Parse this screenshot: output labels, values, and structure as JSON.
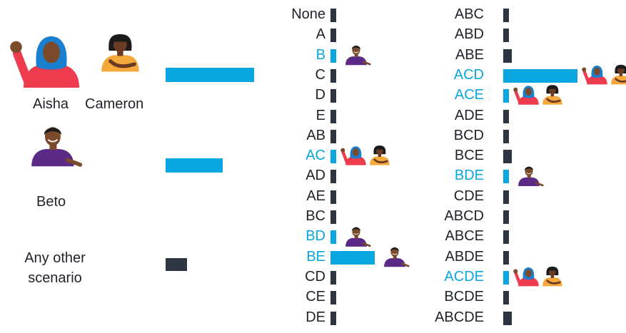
{
  "colors": {
    "highlight": "#0aa6e0",
    "neutral": "#2d3641",
    "text": "#1f2329",
    "skin_dark": "#6a3b22",
    "skin_medium": "#7a4a2a",
    "hijab": "#1b7fd0",
    "aisha_shirt": "#ee3b4d",
    "cameron_shirt": "#f6a93b",
    "beto_shirt": "#5a2a86",
    "hair": "#1b1b1b"
  },
  "people": {
    "aisha": "Aisha",
    "cameron": "Cameron",
    "beto": "Beto"
  },
  "chart_data": [
    {
      "type": "bar",
      "orientation": "horizontal",
      "categories": [
        "Aisha Cameron",
        "Beto",
        "Any other scenario"
      ],
      "values": [
        0.53,
        0.34,
        0.13
      ],
      "highlighted": [
        true,
        true,
        false
      ]
    },
    {
      "type": "bar",
      "orientation": "horizontal",
      "categories": [
        "None",
        "A",
        "B",
        "C",
        "D",
        "E",
        "AB",
        "AC",
        "AD",
        "AE",
        "BC",
        "BD",
        "BE",
        "CD",
        "CE",
        "DE"
      ],
      "values": [
        0.01,
        0.01,
        0.01,
        0.01,
        0.01,
        0.01,
        0.01,
        0.01,
        0.01,
        0.01,
        0.01,
        0.01,
        0.08,
        0.01,
        0.01,
        0.01
      ],
      "highlighted": [
        "B",
        "AC",
        "BD",
        "BE"
      ],
      "scenario_people": {
        "B": [
          "beto"
        ],
        "AC": [
          "aisha",
          "cameron"
        ],
        "BD": [
          "beto"
        ],
        "BE": [
          "beto"
        ]
      }
    },
    {
      "type": "bar",
      "orientation": "horizontal",
      "categories": [
        "ABC",
        "ABD",
        "ABE",
        "ACD",
        "ACE",
        "ADE",
        "BCD",
        "BCE",
        "BDE",
        "CDE",
        "ABCD",
        "ABCE",
        "ABDE",
        "ACDE",
        "BCDE",
        "ABCDE"
      ],
      "values": [
        0.01,
        0.01,
        0.015,
        0.13,
        0.01,
        0.01,
        0.01,
        0.015,
        0.01,
        0.01,
        0.01,
        0.01,
        0.01,
        0.01,
        0.01,
        0.015
      ],
      "highlighted": [
        "ACD",
        "ACE",
        "BDE",
        "ACDE"
      ],
      "scenario_people": {
        "ACD": [
          "aisha",
          "cameron"
        ],
        "ACE": [
          "aisha",
          "cameron"
        ],
        "BDE": [
          "beto"
        ],
        "ACDE": [
          "aisha",
          "cameron"
        ]
      }
    }
  ]
}
